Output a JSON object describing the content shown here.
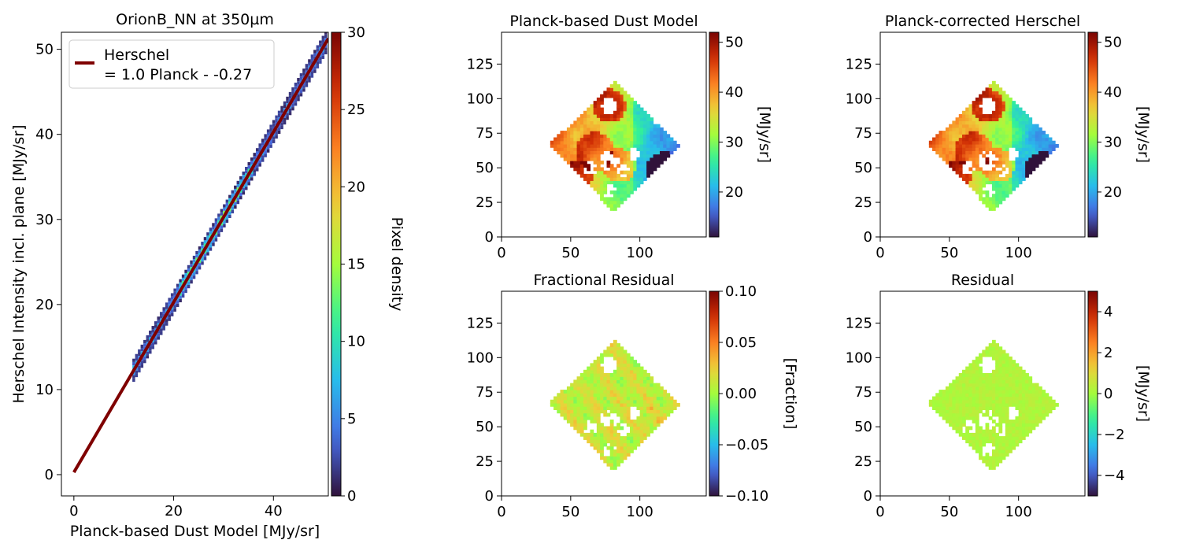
{
  "chart_data": [
    {
      "id": "scatter",
      "type": "heatmap",
      "title": "OrionB_NN at 350µm",
      "xlabel": "Planck-based Dust Model [MJy/sr]",
      "ylabel": "Herschel Intensity incl. plane [MJy/sr]",
      "xlim": [
        -2.5,
        51
      ],
      "ylim": [
        -2.5,
        52
      ],
      "xticks": [
        0,
        20,
        40
      ],
      "yticks": [
        0,
        10,
        20,
        30,
        40,
        50
      ],
      "fit": {
        "slope": 1.0,
        "intercept": 0.27,
        "x_range": [
          0,
          51
        ],
        "color": "#7f0000"
      },
      "legend": {
        "line1": "Herschel",
        "line2": "= 1.0 Planck - -0.27",
        "placement": "upper left"
      },
      "density": {
        "x_range": [
          12,
          51
        ],
        "width": 1.2
      },
      "colorbar": {
        "label": "Pixel density",
        "ticks": [
          0,
          5,
          10,
          15,
          20,
          25,
          30
        ],
        "range": [
          0,
          30
        ],
        "colormap": "turbo"
      }
    },
    {
      "id": "model",
      "type": "heatmap",
      "title": "Planck-based Dust Model",
      "xlim": [
        0,
        148
      ],
      "ylim": [
        0,
        148
      ],
      "xticks": [
        0,
        50,
        100
      ],
      "yticks": [
        0,
        25,
        50,
        75,
        100,
        125
      ],
      "colorbar": {
        "label": "[MJy/sr]",
        "ticks": [
          20,
          30,
          40,
          50
        ],
        "range": [
          11,
          52
        ],
        "colormap": "turbo"
      }
    },
    {
      "id": "corrected",
      "type": "heatmap",
      "title": "Planck-corrected Herschel",
      "xlim": [
        0,
        148
      ],
      "ylim": [
        0,
        148
      ],
      "xticks": [
        0,
        50,
        100
      ],
      "yticks": [
        0,
        25,
        50,
        75,
        100,
        125
      ],
      "colorbar": {
        "label": "[MJy/sr]",
        "ticks": [
          20,
          30,
          40,
          50
        ],
        "range": [
          11,
          52
        ],
        "colormap": "turbo"
      }
    },
    {
      "id": "fracres",
      "type": "heatmap",
      "title": "Fractional Residual",
      "xlim": [
        0,
        148
      ],
      "ylim": [
        0,
        148
      ],
      "xticks": [
        0,
        50,
        100
      ],
      "yticks": [
        0,
        25,
        50,
        75,
        100,
        125
      ],
      "colorbar": {
        "label": "[Fraction]",
        "ticks": [
          -0.1,
          -0.05,
          0.0,
          0.05,
          0.1
        ],
        "tick_labels": [
          "−0.10",
          "−0.05",
          "0.00",
          "0.05",
          "0.10"
        ],
        "range": [
          -0.1,
          0.1
        ],
        "colormap": "turbo"
      }
    },
    {
      "id": "resid",
      "type": "heatmap",
      "title": "Residual",
      "xlim": [
        0,
        148
      ],
      "ylim": [
        0,
        148
      ],
      "xticks": [
        0,
        50,
        100
      ],
      "yticks": [
        0,
        25,
        50,
        75,
        100,
        125
      ],
      "colorbar": {
        "label": "[MJy/sr]",
        "ticks": [
          -4,
          -2,
          0,
          2,
          4
        ],
        "tick_labels": [
          "−4",
          "−2",
          "0",
          "2",
          "4"
        ],
        "range": [
          -5,
          5
        ],
        "colormap": "turbo"
      }
    }
  ]
}
